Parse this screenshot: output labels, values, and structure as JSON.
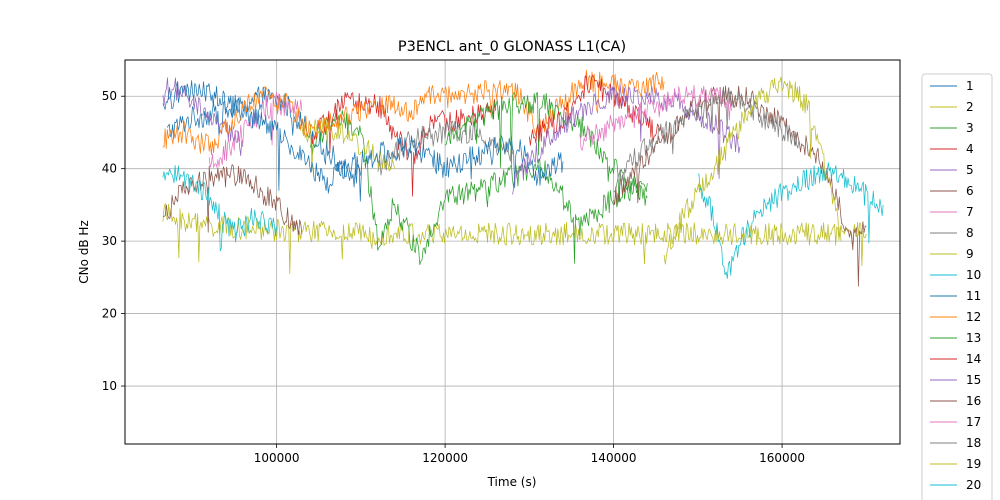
{
  "chart_data": {
    "type": "line",
    "title": "P3ENCL ant_0 GLONASS L1(CA)",
    "xlabel": "Time (s)",
    "ylabel": "CNo dB Hz",
    "xlim": [
      82000,
      174000
    ],
    "ylim": [
      2,
      55
    ],
    "xticks": [
      100000,
      120000,
      140000,
      160000
    ],
    "yticks": [
      10,
      20,
      30,
      40,
      50
    ],
    "grid": true,
    "legend": "right-outside",
    "series": [
      {
        "name": "1",
        "color": "#1f77b4",
        "points": [
          [
            87000,
            45
          ],
          [
            90000,
            47
          ],
          [
            95000,
            48
          ],
          [
            98000,
            50
          ],
          [
            101000,
            49
          ],
          [
            104000,
            45
          ],
          [
            108000,
            40
          ],
          [
            110000,
            39
          ]
        ]
      },
      {
        "name": "2",
        "color": "#bcbd22",
        "points": [
          [
            86500,
            34
          ],
          [
            88000,
            33
          ],
          [
            93000,
            32
          ],
          [
            100000,
            31.5
          ],
          [
            110000,
            31
          ],
          [
            130000,
            31
          ],
          [
            140000,
            31
          ],
          [
            148000,
            31
          ],
          [
            160000,
            31
          ],
          [
            170000,
            31
          ]
        ]
      },
      {
        "name": "3",
        "color": "#2ca02c",
        "points": [
          [
            104000,
            43
          ],
          [
            107000,
            47
          ],
          [
            110000,
            45
          ],
          [
            112000,
            30
          ],
          [
            114000,
            35
          ],
          [
            117000,
            28
          ],
          [
            120000,
            36
          ],
          [
            124000,
            37
          ],
          [
            128000,
            39
          ],
          [
            132000,
            40
          ],
          [
            136000,
            32
          ],
          [
            140000,
            36
          ],
          [
            144000,
            38
          ]
        ]
      },
      {
        "name": "4",
        "color": "#d62728",
        "points": [
          [
            104000,
            44
          ],
          [
            108000,
            49
          ],
          [
            112000,
            49
          ],
          [
            116000,
            41
          ],
          [
            118000,
            46
          ],
          [
            122000,
            47
          ],
          [
            126000,
            48
          ]
        ]
      },
      {
        "name": "5",
        "color": "#9467bd",
        "points": [
          [
            86500,
            51
          ],
          [
            88000,
            51
          ],
          [
            91000,
            48
          ],
          [
            94000,
            45
          ],
          [
            96000,
            43
          ]
        ]
      },
      {
        "name": "6",
        "color": "#8c564b",
        "points": [
          [
            86500,
            33
          ],
          [
            88000,
            36
          ],
          [
            92000,
            39
          ],
          [
            96000,
            39
          ],
          [
            100000,
            35
          ],
          [
            103000,
            31
          ]
        ]
      },
      {
        "name": "7",
        "color": "#e377c2",
        "points": [
          [
            92000,
            40
          ],
          [
            96000,
            45
          ],
          [
            98000,
            48
          ],
          [
            100000,
            49
          ],
          [
            103000,
            48
          ]
        ]
      },
      {
        "name": "8",
        "color": "#7f7f7f",
        "points": [
          [
            112000,
            40
          ],
          [
            116000,
            44
          ],
          [
            120000,
            45
          ],
          [
            124000,
            45
          ],
          [
            128000,
            42
          ]
        ]
      },
      {
        "name": "9",
        "color": "#bcbd22",
        "points": [
          [
            103000,
            45
          ],
          [
            106000,
            46
          ],
          [
            110000,
            43
          ],
          [
            114000,
            40
          ]
        ]
      },
      {
        "name": "10",
        "color": "#17becf",
        "points": [
          [
            86500,
            40
          ],
          [
            89000,
            39
          ],
          [
            92000,
            36
          ],
          [
            95000,
            31
          ],
          [
            97000,
            33
          ],
          [
            100000,
            32
          ]
        ]
      },
      {
        "name": "11",
        "color": "#1f77b4",
        "points": [
          [
            86500,
            49
          ],
          [
            89000,
            51
          ],
          [
            93000,
            50
          ],
          [
            96000,
            48
          ],
          [
            100000,
            45
          ],
          [
            102000,
            43
          ],
          [
            106000,
            38
          ],
          [
            108000,
            40
          ],
          [
            112000,
            42
          ],
          [
            116000,
            43
          ],
          [
            120000,
            40
          ],
          [
            124000,
            42
          ],
          [
            128000,
            44
          ],
          [
            131000,
            39
          ],
          [
            134000,
            41
          ]
        ]
      },
      {
        "name": "12",
        "color": "#ff7f0e",
        "points": [
          [
            86500,
            44
          ],
          [
            89000,
            45
          ],
          [
            92000,
            43
          ],
          [
            95000,
            47
          ],
          [
            98000,
            50
          ],
          [
            101000,
            49
          ],
          [
            104000,
            45
          ],
          [
            112000,
            49
          ],
          [
            116000,
            48
          ],
          [
            118000,
            50
          ],
          [
            122000,
            50
          ],
          [
            126000,
            51
          ],
          [
            129000,
            50
          ],
          [
            131000,
            45
          ],
          [
            133000,
            48
          ],
          [
            136000,
            52
          ],
          [
            139000,
            52
          ],
          [
            142000,
            51
          ],
          [
            146000,
            52
          ]
        ]
      },
      {
        "name": "13",
        "color": "#2ca02c",
        "points": [
          [
            120000,
            44
          ],
          [
            124000,
            47
          ],
          [
            128000,
            49
          ],
          [
            132000,
            49
          ],
          [
            136000,
            46
          ],
          [
            140000,
            40
          ],
          [
            144000,
            36
          ]
        ]
      },
      {
        "name": "14",
        "color": "#d62728",
        "points": [
          [
            130000,
            44
          ],
          [
            134000,
            47
          ],
          [
            137000,
            52
          ],
          [
            140000,
            50
          ],
          [
            143000,
            47
          ],
          [
            146000,
            44
          ]
        ]
      },
      {
        "name": "15",
        "color": "#9467bd",
        "points": [
          [
            128000,
            38
          ],
          [
            132000,
            44
          ],
          [
            136000,
            48
          ],
          [
            140000,
            50
          ],
          [
            144000,
            50
          ],
          [
            148000,
            49
          ],
          [
            152000,
            46
          ],
          [
            155000,
            43
          ]
        ]
      },
      {
        "name": "16",
        "color": "#8c564b",
        "points": [
          [
            140000,
            36
          ],
          [
            143000,
            40
          ],
          [
            146000,
            44
          ],
          [
            149000,
            48
          ],
          [
            152000,
            50
          ],
          [
            156000,
            50
          ],
          [
            160000,
            46
          ],
          [
            164000,
            42
          ],
          [
            166000,
            38
          ],
          [
            168000,
            30
          ],
          [
            170000,
            32
          ]
        ]
      },
      {
        "name": "17",
        "color": "#e377c2",
        "points": [
          [
            136000,
            44
          ],
          [
            140000,
            46
          ],
          [
            144000,
            48
          ],
          [
            148000,
            50
          ],
          [
            152000,
            50
          ],
          [
            154000,
            48
          ]
        ]
      },
      {
        "name": "18",
        "color": "#7f7f7f",
        "points": [
          [
            140000,
            38
          ],
          [
            143000,
            42
          ],
          [
            146000,
            45
          ],
          [
            150000,
            48
          ],
          [
            154000,
            50
          ],
          [
            158000,
            47
          ],
          [
            162000,
            44
          ]
        ]
      },
      {
        "name": "19",
        "color": "#bcbd22",
        "points": [
          [
            146000,
            28
          ],
          [
            148000,
            33
          ],
          [
            152000,
            40
          ],
          [
            156000,
            48
          ],
          [
            160000,
            52
          ],
          [
            163000,
            49
          ],
          [
            166000,
            36
          ],
          [
            167000,
            30
          ]
        ]
      },
      {
        "name": "20",
        "color": "#17becf",
        "points": [
          [
            150000,
            38
          ],
          [
            152000,
            33
          ],
          [
            153500,
            25
          ],
          [
            155000,
            30
          ],
          [
            158000,
            35
          ],
          [
            162000,
            38
          ],
          [
            166000,
            40
          ],
          [
            169000,
            37
          ],
          [
            172000,
            35
          ]
        ]
      }
    ]
  }
}
